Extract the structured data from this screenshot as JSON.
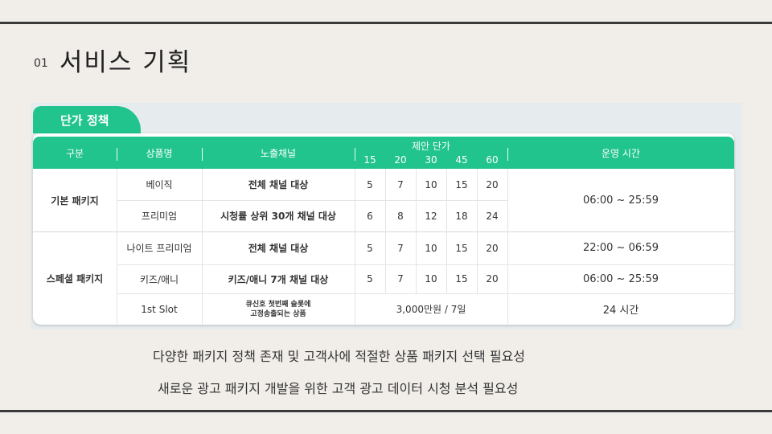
{
  "slide": {
    "number": "01",
    "title": "서비스 기획"
  },
  "tab_label": "단가 정책",
  "table": {
    "headers": {
      "category": "구분",
      "product": "상품명",
      "channel": "노출채널",
      "price": "제안 단가",
      "price_sub": [
        "15",
        "20",
        "30",
        "45",
        "60"
      ],
      "hours": "운영 시간"
    },
    "groups": [
      {
        "label": "기본 패키지"
      },
      {
        "label": "스페셜 패키지"
      }
    ],
    "rows": [
      {
        "product": "베이직",
        "channel": "전체 채널 대상",
        "prices": [
          "5",
          "7",
          "10",
          "15",
          "20"
        ]
      },
      {
        "product": "프리미엄",
        "channel": "시청률 상위 30개 채널 대상",
        "prices": [
          "6",
          "8",
          "12",
          "18",
          "24"
        ]
      },
      {
        "product": "나이트 프리미엄",
        "channel": "전체 채널 대상",
        "prices": [
          "5",
          "7",
          "10",
          "15",
          "20"
        ],
        "hours": "22:00 ~ 06:59"
      },
      {
        "product": "키즈/애니",
        "channel": "키즈/애니 7개 채널 대상",
        "prices": [
          "5",
          "7",
          "10",
          "15",
          "20"
        ],
        "hours": "06:00 ~ 25:59"
      },
      {
        "product": "1st Slot",
        "channel_line1": "큐신호 첫번째 슬롯에",
        "channel_line2": "고정송출되는 상품",
        "price_merged": "3,000만원 / 7일",
        "hours": "24 시간"
      }
    ],
    "basic_hours": "06:00 ~ 25:59"
  },
  "notes": [
    "다양한 패키지 정책 존재 및 고객사에 적절한 상품 패키지 선택 필요성",
    "새로운 광고 패키지 개발을 위한 고객 광고 데이터 시청 분석 필요성"
  ]
}
